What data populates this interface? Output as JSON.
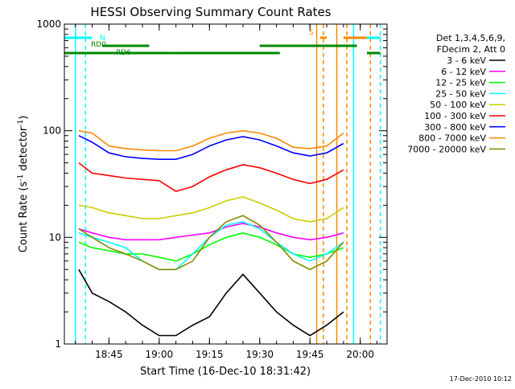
{
  "chart_data": {
    "type": "line",
    "title": "HESSI Observing Summary Count Rates",
    "xlabel": "Start Time (16-Dec-10 18:31:42)",
    "ylabel_parts": {
      "main": "Count Rate (s",
      "sup1": "-1",
      "mid": " detector",
      "sup2": "-1",
      "end": ")"
    },
    "yscale": "log",
    "ylim": [
      1,
      1000
    ],
    "yticks": [
      {
        "value": 1,
        "label": "1"
      },
      {
        "value": 10,
        "label": "10"
      },
      {
        "value": 100,
        "label": "100"
      },
      {
        "value": 1000,
        "label": "1000"
      }
    ],
    "xlim": [
      "18:31:42",
      "20:08:00"
    ],
    "xticks": [
      {
        "t": "18:45",
        "label": "18:45"
      },
      {
        "t": "19:00",
        "label": "19:00"
      },
      {
        "t": "19:15",
        "label": "19:15"
      },
      {
        "t": "19:30",
        "label": "19:30"
      },
      {
        "t": "19:45",
        "label": "19:45"
      },
      {
        "t": "20:00",
        "label": "20:00"
      }
    ],
    "legend_header": [
      "Det 1,3,4,5,6,9,",
      "FDecim 2, Att 0"
    ],
    "legend_position": "right",
    "timestamp": "17-Dec-2010 10:12",
    "series": [
      {
        "name": "3 - 6 keV",
        "color": "#000000",
        "points": [
          [
            "18:36",
            "5"
          ],
          [
            "18:40",
            "3"
          ],
          [
            "18:45",
            "2.5"
          ],
          [
            "18:50",
            "2"
          ],
          [
            "18:55",
            "1.5"
          ],
          [
            "19:00",
            "1.2"
          ],
          [
            "19:05",
            "1.2"
          ],
          [
            "19:10",
            "1.5"
          ],
          [
            "19:15",
            "1.8"
          ],
          [
            "19:20",
            "3"
          ],
          [
            "19:25",
            "4.5"
          ],
          [
            "19:30",
            "3"
          ],
          [
            "19:35",
            "2"
          ],
          [
            "19:40",
            "1.5"
          ],
          [
            "19:45",
            "1.2"
          ],
          [
            "19:50",
            "1.5"
          ],
          [
            "19:55",
            "2"
          ]
        ]
      },
      {
        "name": "6 - 12 keV",
        "color": "#ff00ff",
        "points": [
          [
            "18:36",
            "12"
          ],
          [
            "18:40",
            "11"
          ],
          [
            "18:45",
            "10"
          ],
          [
            "18:50",
            "9.5"
          ],
          [
            "18:55",
            "9.5"
          ],
          [
            "19:00",
            "9.5"
          ],
          [
            "19:05",
            "10"
          ],
          [
            "19:10",
            "10.5"
          ],
          [
            "19:15",
            "11"
          ],
          [
            "19:20",
            "12.5"
          ],
          [
            "19:25",
            "13.5"
          ],
          [
            "19:30",
            "12.5"
          ],
          [
            "19:35",
            "11"
          ],
          [
            "19:40",
            "10"
          ],
          [
            "19:45",
            "9.5"
          ],
          [
            "19:50",
            "10"
          ],
          [
            "19:55",
            "11"
          ]
        ]
      },
      {
        "name": "12 - 25 keV",
        "color": "#00ff00",
        "points": [
          [
            "18:36",
            "9"
          ],
          [
            "18:40",
            "8"
          ],
          [
            "18:45",
            "7.5"
          ],
          [
            "18:50",
            "7"
          ],
          [
            "18:55",
            "7"
          ],
          [
            "19:00",
            "6.5"
          ],
          [
            "19:05",
            "6"
          ],
          [
            "19:10",
            "7"
          ],
          [
            "19:15",
            "8.5"
          ],
          [
            "19:20",
            "10"
          ],
          [
            "19:25",
            "11"
          ],
          [
            "19:30",
            "10"
          ],
          [
            "19:35",
            "8.5"
          ],
          [
            "19:40",
            "7"
          ],
          [
            "19:45",
            "6.5"
          ],
          [
            "19:50",
            "7"
          ],
          [
            "19:55",
            "8"
          ]
        ]
      },
      {
        "name": "25 - 50 keV",
        "color": "#00ffff",
        "points": [
          [
            "18:36",
            "11"
          ],
          [
            "18:40",
            "10"
          ],
          [
            "18:45",
            "9"
          ],
          [
            "18:50",
            "8"
          ],
          [
            "18:55",
            "6"
          ],
          [
            "19:00",
            "5"
          ],
          [
            "19:05",
            "5"
          ],
          [
            "19:10",
            "7"
          ],
          [
            "19:15",
            "10"
          ],
          [
            "19:20",
            "13"
          ],
          [
            "19:25",
            "14"
          ],
          [
            "19:30",
            "12"
          ],
          [
            "19:35",
            "9"
          ],
          [
            "19:40",
            "7"
          ],
          [
            "19:45",
            "6"
          ],
          [
            "19:50",
            "7"
          ],
          [
            "19:55",
            "9"
          ]
        ]
      },
      {
        "name": "50 - 100 keV",
        "color": "#cccc00",
        "points": [
          [
            "18:36",
            "20"
          ],
          [
            "18:40",
            "19"
          ],
          [
            "18:45",
            "17"
          ],
          [
            "18:50",
            "16"
          ],
          [
            "18:55",
            "15"
          ],
          [
            "19:00",
            "15"
          ],
          [
            "19:05",
            "16"
          ],
          [
            "19:10",
            "17"
          ],
          [
            "19:15",
            "19"
          ],
          [
            "19:20",
            "22"
          ],
          [
            "19:25",
            "24"
          ],
          [
            "19:30",
            "21"
          ],
          [
            "19:35",
            "18"
          ],
          [
            "19:40",
            "15"
          ],
          [
            "19:45",
            "14"
          ],
          [
            "19:50",
            "15"
          ],
          [
            "19:55",
            "19"
          ]
        ]
      },
      {
        "name": "100 - 300 keV",
        "color": "#ff0000",
        "points": [
          [
            "18:36",
            "50"
          ],
          [
            "18:40",
            "40"
          ],
          [
            "18:45",
            "38"
          ],
          [
            "18:50",
            "36"
          ],
          [
            "18:55",
            "35"
          ],
          [
            "19:00",
            "34"
          ],
          [
            "19:05",
            "27"
          ],
          [
            "19:10",
            "30"
          ],
          [
            "19:15",
            "37"
          ],
          [
            "19:20",
            "43"
          ],
          [
            "19:25",
            "48"
          ],
          [
            "19:30",
            "45"
          ],
          [
            "19:35",
            "40"
          ],
          [
            "19:40",
            "35"
          ],
          [
            "19:45",
            "32"
          ],
          [
            "19:50",
            "35"
          ],
          [
            "19:55",
            "43"
          ]
        ]
      },
      {
        "name": "300 - 800 keV",
        "color": "#0000ff",
        "points": [
          [
            "18:36",
            "90"
          ],
          [
            "18:40",
            "78"
          ],
          [
            "18:45",
            "62"
          ],
          [
            "18:50",
            "57"
          ],
          [
            "18:55",
            "55"
          ],
          [
            "19:00",
            "54"
          ],
          [
            "19:05",
            "54"
          ],
          [
            "19:10",
            "60"
          ],
          [
            "19:15",
            "72"
          ],
          [
            "19:20",
            "82"
          ],
          [
            "19:25",
            "88"
          ],
          [
            "19:30",
            "82"
          ],
          [
            "19:35",
            "72"
          ],
          [
            "19:40",
            "62"
          ],
          [
            "19:45",
            "58"
          ],
          [
            "19:50",
            "62"
          ],
          [
            "19:55",
            "76"
          ]
        ]
      },
      {
        "name": "800 - 7000 keV",
        "color": "#ff8800",
        "points": [
          [
            "18:36",
            "100"
          ],
          [
            "18:40",
            "95"
          ],
          [
            "18:45",
            "72"
          ],
          [
            "18:50",
            "68"
          ],
          [
            "18:55",
            "66"
          ],
          [
            "19:00",
            "65"
          ],
          [
            "19:05",
            "65"
          ],
          [
            "19:10",
            "72"
          ],
          [
            "19:15",
            "85"
          ],
          [
            "19:20",
            "95"
          ],
          [
            "19:25",
            "100"
          ],
          [
            "19:30",
            "95"
          ],
          [
            "19:35",
            "85"
          ],
          [
            "19:40",
            "70"
          ],
          [
            "19:45",
            "68"
          ],
          [
            "19:50",
            "72"
          ],
          [
            "19:55",
            "95"
          ]
        ]
      },
      {
        "name": "7000 - 20000 keV",
        "color": "#888800",
        "points": [
          [
            "18:36",
            "12"
          ],
          [
            "18:40",
            "10"
          ],
          [
            "18:45",
            "8"
          ],
          [
            "18:50",
            "7"
          ],
          [
            "18:55",
            "6"
          ],
          [
            "19:00",
            "5"
          ],
          [
            "19:05",
            "5"
          ],
          [
            "19:10",
            "6"
          ],
          [
            "19:15",
            "10"
          ],
          [
            "19:20",
            "14"
          ],
          [
            "19:25",
            "16"
          ],
          [
            "19:30",
            "13"
          ],
          [
            "19:35",
            "9"
          ],
          [
            "19:40",
            "6"
          ],
          [
            "19:45",
            "5"
          ],
          [
            "19:50",
            "6"
          ],
          [
            "19:55",
            "9"
          ]
        ]
      }
    ],
    "flag_bars": [
      {
        "label": "N",
        "color": "#00ffff",
        "level": "top",
        "segments": [
          [
            "18:31:42",
            "18:40"
          ],
          [
            "20:00",
            "20:06"
          ]
        ]
      },
      {
        "label": "RD0",
        "color": "#008800",
        "level": "mid",
        "segments": [
          [
            "18:43",
            "18:57"
          ],
          [
            "19:30",
            "19:59"
          ]
        ]
      },
      {
        "label": "RD6",
        "color": "#008800",
        "level": "low",
        "segments": [
          [
            "18:31:42",
            "19:05"
          ],
          [
            "19:05",
            "19:36"
          ],
          [
            "20:02",
            "20:06"
          ]
        ]
      },
      {
        "label": "S",
        "color": "#ff8800",
        "level": "top",
        "segments": [
          [
            "19:48",
            "19:50"
          ],
          [
            "19:55",
            "20:02"
          ]
        ]
      }
    ],
    "vlines": [
      {
        "t": "18:35",
        "color": "#00ffff",
        "style": "solid"
      },
      {
        "t": "18:38",
        "color": "#00ffff",
        "style": "dashed"
      },
      {
        "t": "19:47",
        "color": "#ff8800",
        "style": "solid"
      },
      {
        "t": "19:49",
        "color": "#ff8800",
        "style": "dashed"
      },
      {
        "t": "19:53",
        "color": "#ff8800",
        "style": "solid"
      },
      {
        "t": "19:56",
        "color": "#ff8800",
        "style": "dashed"
      },
      {
        "t": "19:58",
        "color": "#00ffff",
        "style": "solid"
      },
      {
        "t": "20:03",
        "color": "#ff8800",
        "style": "dashed"
      },
      {
        "t": "20:06",
        "color": "#00ffff",
        "style": "dashed"
      }
    ]
  }
}
